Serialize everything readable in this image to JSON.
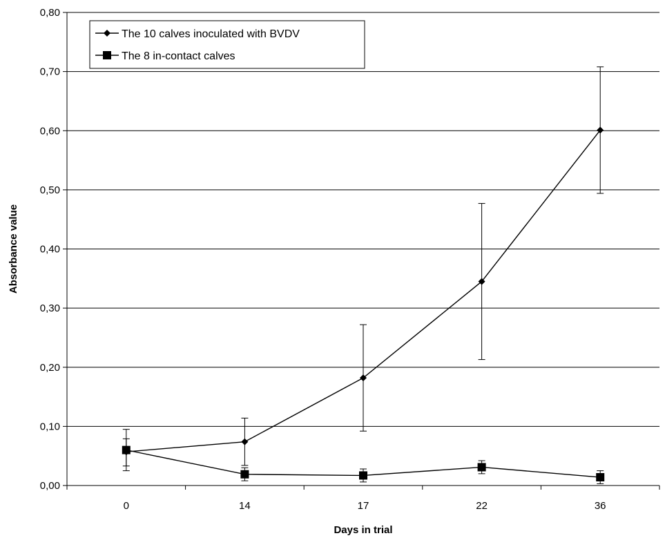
{
  "chart_data": {
    "type": "line",
    "title": "",
    "xlabel": "Days in trial",
    "ylabel": "Absorbance value",
    "categories": [
      "0",
      "14",
      "17",
      "22",
      "36"
    ],
    "ylim": [
      0,
      0.8
    ],
    "yticks": [
      "0,00",
      "0,10",
      "0,20",
      "0,30",
      "0,40",
      "0,50",
      "0,60",
      "0,70",
      "0,80"
    ],
    "grid": true,
    "legend_position": "top-left",
    "series": [
      {
        "name": "The 10  calves inoculated with BVDV",
        "marker": "diamond",
        "values": [
          0.057,
          0.074,
          0.182,
          0.345,
          0.601
        ],
        "error_low": [
          0.033,
          0.034,
          0.092,
          0.213,
          0.494
        ],
        "error_high": [
          0.079,
          0.114,
          0.272,
          0.477,
          0.708
        ]
      },
      {
        "name": "The 8 in-contact calves",
        "marker": "square",
        "values": [
          0.06,
          0.019,
          0.017,
          0.031,
          0.014
        ],
        "error_low": [
          0.025,
          0.008,
          0.006,
          0.02,
          0.003
        ],
        "error_high": [
          0.095,
          0.03,
          0.028,
          0.042,
          0.025
        ]
      }
    ]
  }
}
